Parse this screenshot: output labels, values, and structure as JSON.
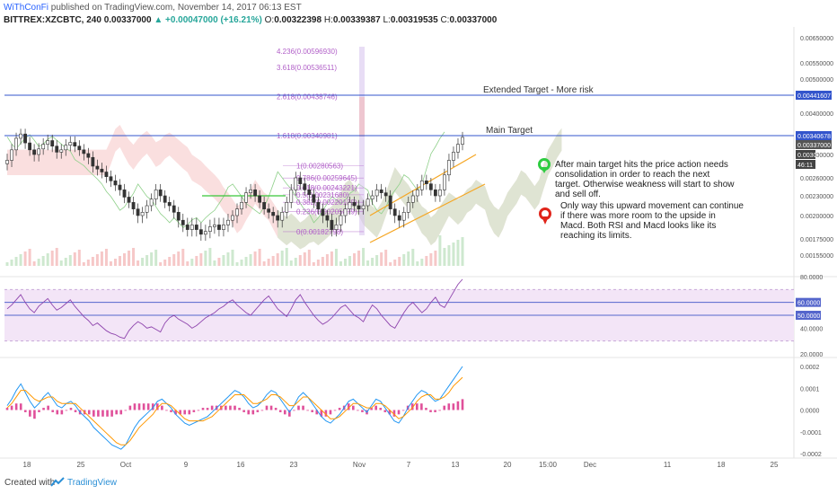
{
  "header": {
    "author": "WiThConFi",
    "published": "published on TradingView.com, November 14, 2017 06:13 EST",
    "symbol": "BITTREX:XZCBTC, 240",
    "last": "0.00337000",
    "change": "+0.00047000 (+16.21%)",
    "o_label": "O:",
    "o": "0.00322398",
    "h_label": "H:",
    "h": "0.00339387",
    "l_label": "L:",
    "l": "0.00319535",
    "c_label": "C:",
    "c": "0.00337000"
  },
  "footer": {
    "created_with": "Created with",
    "brand": "TradingView"
  },
  "colors": {
    "candle": "#333333",
    "fib": "#b160c8",
    "hline": "#3355cc",
    "price_tag": "#3355cc",
    "rsi": "#8e44ad",
    "rsi_band": "#f3e5f7",
    "macd": "#2196f3",
    "signal": "#ff9800",
    "hist": "#e0509a",
    "channel": "#f5a623",
    "cloud_red": "#f6c4c4",
    "cloud_green": "#cde8cc"
  },
  "chart_data": [
    {
      "type": "candlestick",
      "title": "BITTREX:XZCBTC, 240",
      "ylim": [
        0.00155,
        0.0065
      ],
      "yticks": [
        "0.00650000",
        "0.00550000",
        "0.00500000",
        "0.00441607",
        "0.00400000",
        "0.00340678",
        "0.00337000",
        "0.00300000",
        "0.00260000",
        "0.00230000",
        "0.00200000",
        "0.00175000",
        "0.00155000"
      ],
      "xticks": [
        "18",
        "25",
        "Oct",
        "9",
        "16",
        "23",
        "Nov",
        "7",
        "13",
        "20",
        "15:00",
        "Dec",
        "11",
        "18",
        "25"
      ],
      "price_tags": [
        {
          "value": "0.00441607",
          "label": "0.00441607"
        },
        {
          "value": "0.00340678",
          "label": "0.00340678"
        },
        {
          "value": "0.00337000",
          "label": "0.00337000"
        },
        {
          "value": "0.0030",
          "label": "0.0030"
        },
        {
          "value": "46:11",
          "label": "46:11"
        }
      ],
      "horizontal_lines": [
        {
          "value": 0.00441607,
          "label": "Extended Target - More risk"
        },
        {
          "value": 0.00340678,
          "label": "Main Target"
        }
      ],
      "fib_levels": [
        {
          "label": "4.236(0.00596930)",
          "value": 0.0059693
        },
        {
          "label": "3.618(0.00536511)",
          "value": 0.00536511
        },
        {
          "label": "2.618(0.00438746)",
          "value": 0.00438746
        },
        {
          "label": "1.618(0.00340981)",
          "value": 0.00340981
        },
        {
          "label": "1(0.00280563)",
          "value": 0.00280563
        },
        {
          "label": "0.786(0.00259645)",
          "value": 0.00259645
        },
        {
          "label": "0.618(0.00243221)",
          "value": 0.00243221
        },
        {
          "label": "0.5(0.00231680)",
          "value": 0.0023168
        },
        {
          "label": "0.382(0.00220139)",
          "value": 0.00220139
        },
        {
          "label": "0.236(0.00205879)",
          "value": 0.00205879
        },
        {
          "label": "0(0.00182798)",
          "value": 0.00182798
        }
      ],
      "close_series": [
        0.0029,
        0.0031,
        0.00335,
        0.00345,
        0.00325,
        0.0031,
        0.003,
        0.00312,
        0.00322,
        0.0033,
        0.00318,
        0.00305,
        0.0031,
        0.0032,
        0.00326,
        0.00318,
        0.0031,
        0.00302,
        0.00295,
        0.0028,
        0.00275,
        0.0027,
        0.00262,
        0.00255,
        0.00248,
        0.0024,
        0.00228,
        0.0022,
        0.0021,
        0.002,
        0.00205,
        0.00215,
        0.00225,
        0.0024,
        0.0023,
        0.0022,
        0.00215,
        0.00205,
        0.00195,
        0.0019,
        0.00185,
        0.0019,
        0.00185,
        0.0018,
        0.00183,
        0.00188,
        0.0019,
        0.00185,
        0.0019,
        0.00195,
        0.002,
        0.0021,
        0.0022,
        0.00235,
        0.0024,
        0.0023,
        0.0022,
        0.0021,
        0.00205,
        0.002,
        0.00195,
        0.00205,
        0.0022,
        0.0024,
        0.0026,
        0.0025,
        0.0024,
        0.00232,
        0.0022,
        0.0021,
        0.002,
        0.00195,
        0.00185,
        0.0019,
        0.002,
        0.0021,
        0.0022,
        0.00215,
        0.0021,
        0.00215,
        0.00225,
        0.0023,
        0.0024,
        0.00235,
        0.0023,
        0.0021,
        0.002,
        0.00195,
        0.00205,
        0.0022,
        0.0023,
        0.0024,
        0.00255,
        0.0025,
        0.0024,
        0.0023,
        0.0024,
        0.00265,
        0.0029,
        0.00305,
        0.00322,
        0.00337
      ],
      "annotations": [
        {
          "marker": "green",
          "text": "After main target hits the price action needs consolidation in order to reach the next target. Otherwise weakness will start to show and sell off."
        },
        {
          "marker": "red",
          "text": "Only way this upward movement can continue if there was more room to the upside in Macd. Both RSI and Macd looks like its reaching its limits."
        }
      ]
    },
    {
      "type": "line",
      "ylim": [
        20,
        80
      ],
      "yticks": [
        "80.0000",
        "60.0000",
        "50.0000",
        "40.0000",
        "20.0000"
      ],
      "bands": [
        60,
        50
      ],
      "series": [
        {
          "values": [
            55,
            58,
            62,
            66,
            60,
            55,
            52,
            57,
            60,
            63,
            58,
            54,
            56,
            59,
            62,
            57,
            53,
            49,
            46,
            42,
            44,
            41,
            38,
            36,
            35,
            33,
            32,
            38,
            42,
            45,
            43,
            40,
            41,
            39,
            37,
            44,
            48,
            50,
            47,
            45,
            43,
            40,
            42,
            45,
            48,
            50,
            52,
            55,
            57,
            60,
            62,
            58,
            55,
            52,
            50,
            54,
            58,
            62,
            65,
            60,
            55,
            52,
            49,
            55,
            62,
            66,
            60,
            55,
            50,
            46,
            43,
            45,
            48,
            52,
            56,
            58,
            54,
            50,
            48,
            45,
            52,
            58,
            55,
            50,
            46,
            42,
            40,
            46,
            52,
            57,
            60,
            56,
            52,
            55,
            60,
            64,
            58,
            56,
            62,
            68,
            74,
            78
          ]
        }
      ]
    },
    {
      "type": "bar",
      "ylim": [
        -0.0002,
        0.0002
      ],
      "yticks": [
        "0.0002",
        "0.0001",
        "0.0000",
        "-0.0001",
        "-0.0002"
      ],
      "series": [
        {
          "values": [
            2e-05,
            5e-05,
            9e-05,
            0.00012,
            8e-05,
            4e-05,
            1e-05,
            3e-05,
            6e-05,
            8e-05,
            5e-05,
            2e-05,
            1e-05,
            3e-05,
            4e-05,
            2e-05,
            -1e-05,
            -3e-05,
            -5e-05,
            -8e-05,
            -0.0001,
            -0.00012,
            -0.00014,
            -0.00016,
            -0.00017,
            -0.00018,
            -0.00016,
            -0.00012,
            -8e-05,
            -5e-05,
            -3e-05,
            -1e-05,
            1e-05,
            4e-05,
            5e-05,
            3e-05,
            1e-05,
            -2e-05,
            -4e-05,
            -6e-05,
            -7e-05,
            -6e-05,
            -5e-05,
            -4e-05,
            -3e-05,
            -1e-05,
            1e-05,
            3e-05,
            5e-05,
            7e-05,
            9e-05,
            8e-05,
            6e-05,
            3e-05,
            1e-05,
            2e-05,
            4e-05,
            7e-05,
            9e-05,
            8e-05,
            5e-05,
            2e-05,
            -1e-05,
            2e-05,
            6e-05,
            8e-05,
            6e-05,
            3e-05,
            0.0,
            -3e-05,
            -5e-05,
            -6e-05,
            -4e-05,
            -2e-05,
            1e-05,
            4e-05,
            5e-05,
            3e-05,
            1e-05,
            -1e-05,
            2e-05,
            5e-05,
            4e-05,
            1e-05,
            -2e-05,
            -5e-05,
            -6e-05,
            -3e-05,
            1e-05,
            4e-05,
            7e-05,
            9e-05,
            8e-05,
            6e-05,
            4e-05,
            5e-05,
            8e-05,
            0.00011,
            0.00014,
            0.00017,
            0.0002
          ]
        },
        {
          "values": [
            1e-05,
            3e-05,
            6e-05,
            9e-05,
            9e-05,
            7e-05,
            5e-05,
            4e-05,
            5e-05,
            6e-05,
            6e-05,
            4e-05,
            3e-05,
            3e-05,
            3e-05,
            3e-05,
            1e-05,
            -1e-05,
            -3e-05,
            -5e-05,
            -7e-05,
            -9e-05,
            -0.00011,
            -0.00013,
            -0.00015,
            -0.00016,
            -0.00016,
            -0.00014,
            -0.00011,
            -8e-05,
            -6e-05,
            -4e-05,
            -2e-05,
            1e-05,
            3e-05,
            3e-05,
            2e-05,
            0.0,
            -2e-05,
            -4e-05,
            -5e-05,
            -5e-05,
            -5e-05,
            -5e-05,
            -4e-05,
            -3e-05,
            -1e-05,
            1e-05,
            3e-05,
            5e-05,
            7e-05,
            7e-05,
            7e-05,
            5e-05,
            3e-05,
            3e-05,
            4e-05,
            5e-05,
            7e-05,
            7e-05,
            6e-05,
            4e-05,
            2e-05,
            2e-05,
            4e-05,
            6e-05,
            6e-05,
            4e-05,
            2e-05,
            0.0,
            -2e-05,
            -4e-05,
            -4e-05,
            -3e-05,
            -1e-05,
            1e-05,
            3e-05,
            3e-05,
            2e-05,
            1e-05,
            1e-05,
            3e-05,
            3e-05,
            2e-05,
            0.0,
            -2e-05,
            -4e-05,
            -3e-05,
            -1e-05,
            1e-05,
            4e-05,
            6e-05,
            7e-05,
            7e-05,
            5e-05,
            5e-05,
            6e-05,
            8e-05,
            0.00011,
            0.00013,
            0.00015
          ]
        }
      ],
      "histogram": [
        1e-05,
        2e-05,
        3e-05,
        3e-05,
        -1e-05,
        -3e-05,
        -4e-05,
        -1e-05,
        1e-05,
        2e-05,
        -1e-05,
        -2e-05,
        -2e-05,
        0.0,
        1e-05,
        -1e-05,
        -2e-05,
        -2e-05,
        -2e-05,
        -3e-05,
        -3e-05,
        -3e-05,
        -3e-05,
        -3e-05,
        -2e-05,
        -2e-05,
        0.0,
        2e-05,
        3e-05,
        3e-05,
        3e-05,
        3e-05,
        3e-05,
        3e-05,
        2e-05,
        0.0,
        -1e-05,
        -2e-05,
        -2e-05,
        -2e-05,
        -2e-05,
        -1e-05,
        0.0,
        1e-05,
        1e-05,
        2e-05,
        2e-05,
        2e-05,
        2e-05,
        2e-05,
        2e-05,
        1e-05,
        -1e-05,
        -2e-05,
        -2e-05,
        -1e-05,
        0.0,
        2e-05,
        2e-05,
        1e-05,
        -1e-05,
        -2e-05,
        -3e-05,
        0.0,
        2e-05,
        2e-05,
        0.0,
        -1e-05,
        -2e-05,
        -3e-05,
        -3e-05,
        -2e-05,
        0.0,
        1e-05,
        2e-05,
        3e-05,
        2e-05,
        0.0,
        -1e-05,
        -2e-05,
        1e-05,
        2e-05,
        1e-05,
        -1e-05,
        -2e-05,
        -3e-05,
        -2e-05,
        0.0,
        2e-05,
        3e-05,
        3e-05,
        3e-05,
        1e-05,
        -1e-05,
        -1e-05,
        0.0,
        2e-05,
        3e-05,
        3e-05,
        4e-05,
        5e-05
      ]
    }
  ]
}
